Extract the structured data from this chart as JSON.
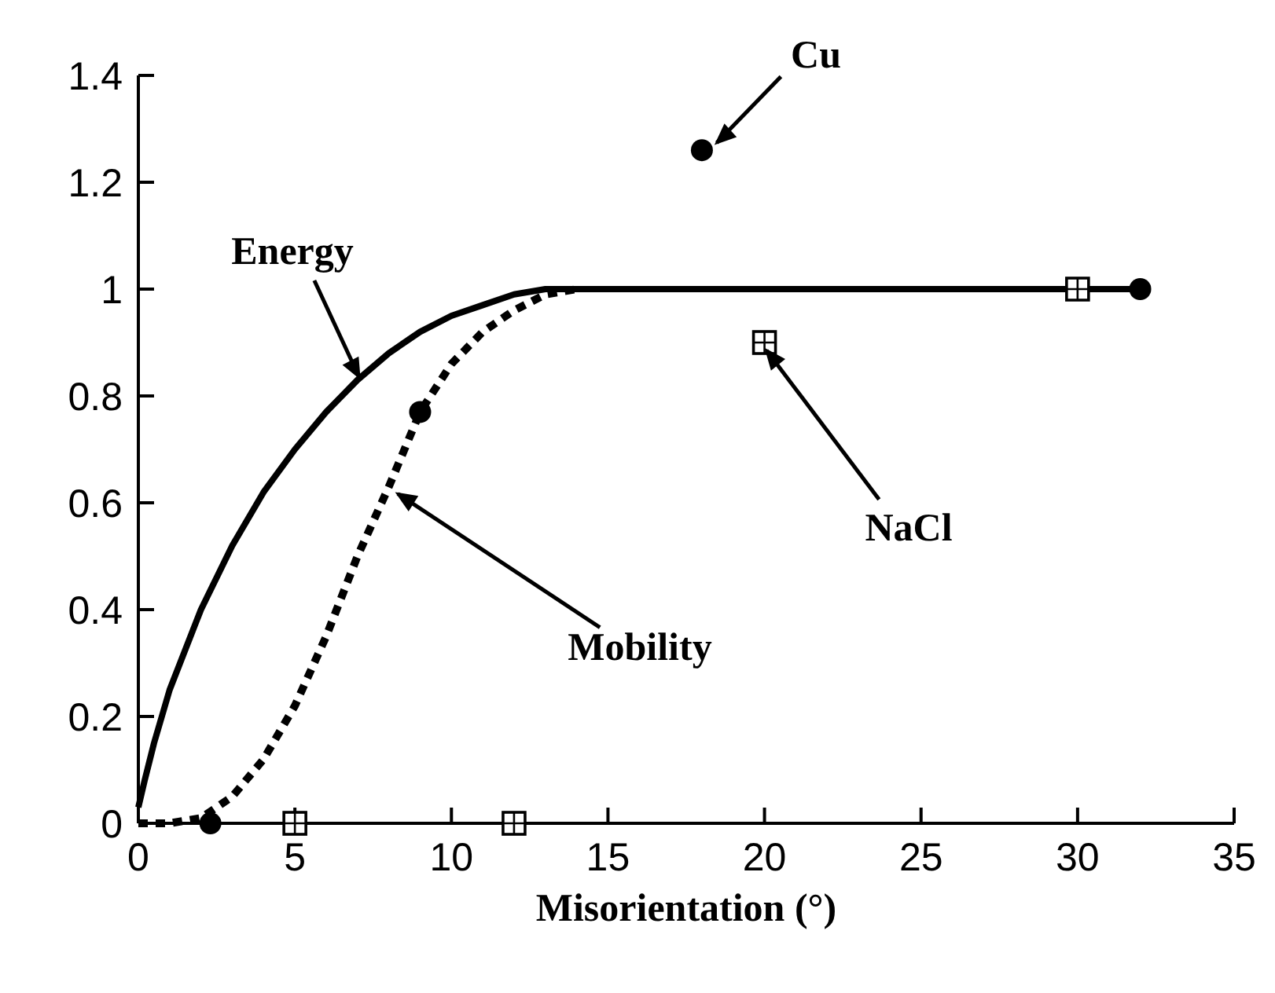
{
  "chart_data": {
    "type": "line",
    "xlabel": "Misorientation (°)",
    "xlim": [
      0,
      35
    ],
    "xticks": [
      0,
      5,
      10,
      15,
      20,
      25,
      30,
      35
    ],
    "ylim": [
      0,
      1.4
    ],
    "yticks": [
      0,
      0.2,
      0.4,
      0.6,
      0.8,
      1,
      1.2,
      1.4
    ],
    "grid": false,
    "series": [
      {
        "line_style": "solid",
        "marker": "none",
        "color": "#000000",
        "x": [
          0,
          0.2,
          0.5,
          1,
          2,
          3,
          4,
          5,
          6,
          7,
          8,
          9,
          10,
          11,
          12,
          13,
          14,
          15,
          32
        ],
        "values": [
          0.03,
          0.08,
          0.15,
          0.25,
          0.4,
          0.52,
          0.62,
          0.7,
          0.77,
          0.83,
          0.88,
          0.92,
          0.95,
          0.97,
          0.99,
          1,
          1,
          1,
          1
        ]
      },
      {
        "line_style": "dashed",
        "marker": "none",
        "color": "#000000",
        "x": [
          0,
          1,
          2,
          3,
          4,
          5,
          6,
          7,
          8,
          9,
          10,
          11,
          12,
          13,
          14
        ],
        "values": [
          0,
          0,
          0.01,
          0.05,
          0.12,
          0.22,
          0.35,
          0.5,
          0.63,
          0.77,
          0.86,
          0.92,
          0.96,
          0.99,
          1
        ]
      },
      {
        "type": "scatter",
        "marker": "circle",
        "color": "#000000",
        "x": [
          2.3,
          9,
          18,
          32
        ],
        "values": [
          0,
          0.77,
          1.26,
          1
        ]
      },
      {
        "type": "scatter",
        "marker": "square",
        "color": "#000000",
        "x": [
          5,
          12,
          20,
          30
        ],
        "values": [
          0,
          0,
          0.9,
          1
        ]
      }
    ],
    "annotations": [
      {
        "text": "Cu",
        "x": 18.4,
        "y": 1.27
      },
      {
        "text": "Energy",
        "x": 7.1,
        "y": 0.83
      },
      {
        "text": "NaCl",
        "x": 20,
        "y": 0.89
      },
      {
        "text": "Mobility",
        "x": 8.2,
        "y": 0.62
      }
    ]
  }
}
